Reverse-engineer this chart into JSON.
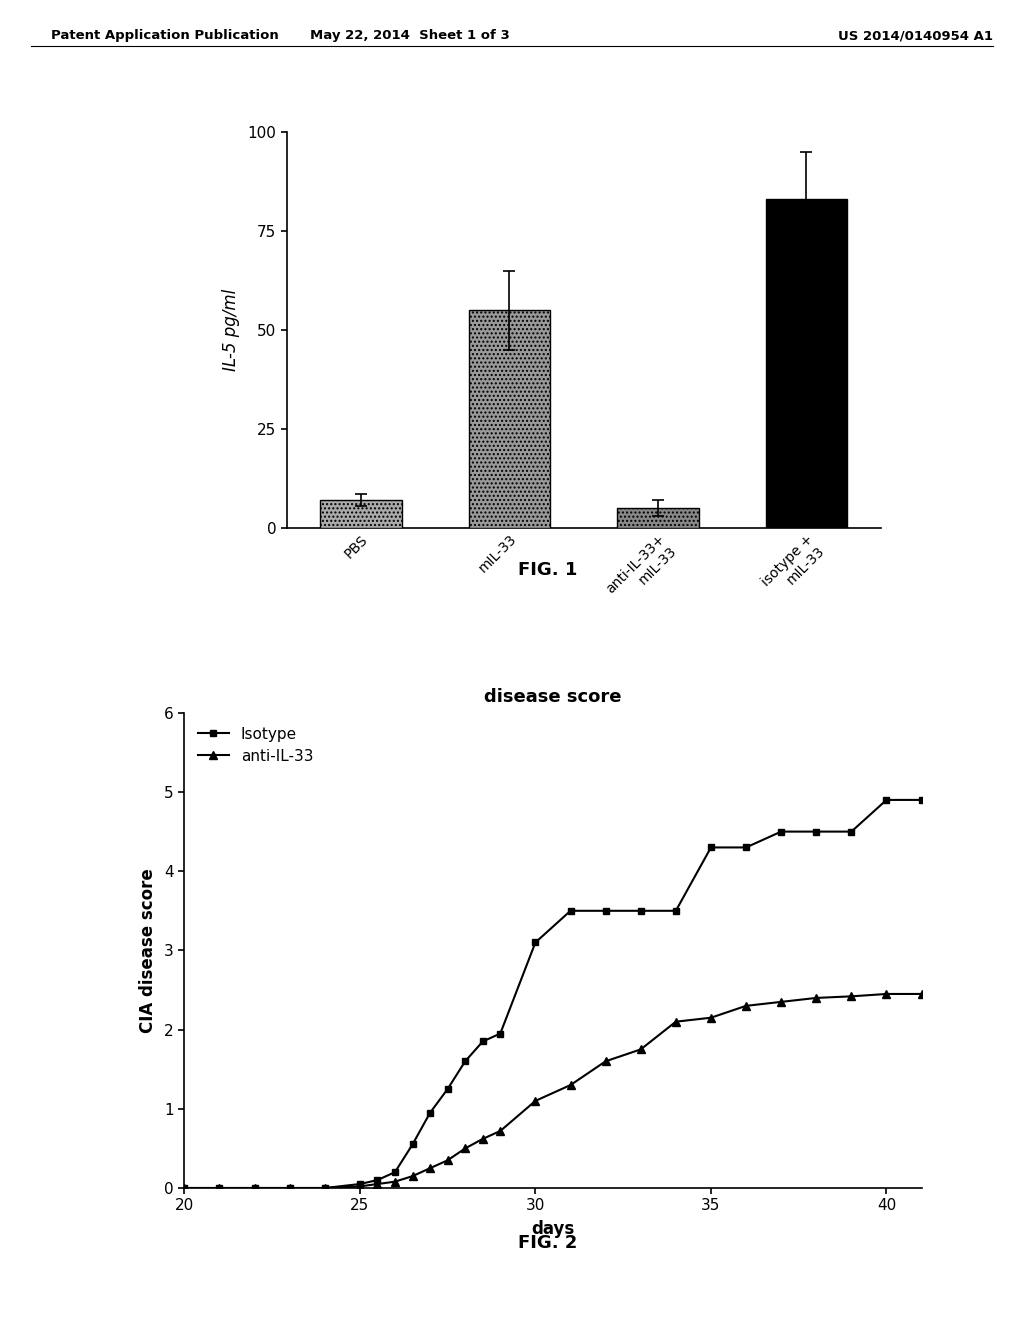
{
  "fig1": {
    "categories": [
      "PBS",
      "mIL-33",
      "anti-IL-33+ mIL-33",
      "isotype + mIL-33"
    ],
    "xlabels": [
      "PBS",
      "mIL-33",
      "anti-IL-33+\nmIL-33",
      "isotype +\nmIL-33"
    ],
    "values": [
      7,
      55,
      5,
      83
    ],
    "errors": [
      1.5,
      10,
      2,
      12
    ],
    "bar_hatches": [
      "....",
      "....",
      "....",
      ""
    ],
    "bar_facecolors": [
      "#aaaaaa",
      "#999999",
      "#888888",
      "#000000"
    ],
    "ylabel": "IL-5 pg/ml",
    "ylim": [
      0,
      100
    ],
    "yticks": [
      0,
      25,
      50,
      75,
      100
    ],
    "fig_label": "FIG. 1"
  },
  "fig2": {
    "title": "disease score",
    "xlabel": "days",
    "ylabel": "CIA disease score",
    "ylim": [
      0,
      6
    ],
    "yticks": [
      0,
      1,
      2,
      3,
      4,
      5,
      6
    ],
    "xlim": [
      20,
      41
    ],
    "xticks": [
      20,
      25,
      30,
      35,
      40
    ],
    "isotype_x": [
      20,
      21,
      22,
      23,
      24,
      25,
      25.5,
      26,
      26.5,
      27,
      27.5,
      28,
      28.5,
      29,
      30,
      31,
      32,
      33,
      34,
      35,
      36,
      37,
      38,
      39,
      40,
      41
    ],
    "isotype_y": [
      0,
      0,
      0,
      0,
      0,
      0.05,
      0.1,
      0.2,
      0.55,
      0.95,
      1.25,
      1.6,
      1.85,
      1.95,
      3.1,
      3.5,
      3.5,
      3.5,
      3.5,
      4.3,
      4.3,
      4.5,
      4.5,
      4.5,
      4.9,
      4.9
    ],
    "antiIL33_x": [
      20,
      21,
      22,
      23,
      24,
      25,
      25.5,
      26,
      26.5,
      27,
      27.5,
      28,
      28.5,
      29,
      30,
      31,
      32,
      33,
      34,
      35,
      36,
      37,
      38,
      39,
      40,
      41
    ],
    "antiIL33_y": [
      0,
      0,
      0,
      0,
      0,
      0.02,
      0.05,
      0.08,
      0.15,
      0.25,
      0.35,
      0.5,
      0.62,
      0.72,
      1.1,
      1.3,
      1.6,
      1.75,
      2.1,
      2.15,
      2.3,
      2.35,
      2.4,
      2.42,
      2.45,
      2.45
    ],
    "fig_label": "FIG. 2",
    "legend_labels": [
      "Isotype",
      "anti-IL-33"
    ]
  },
  "header_left": "Patent Application Publication",
  "header_center": "May 22, 2014  Sheet 1 of 3",
  "header_right": "US 2014/0140954 A1",
  "background_color": "#ffffff"
}
